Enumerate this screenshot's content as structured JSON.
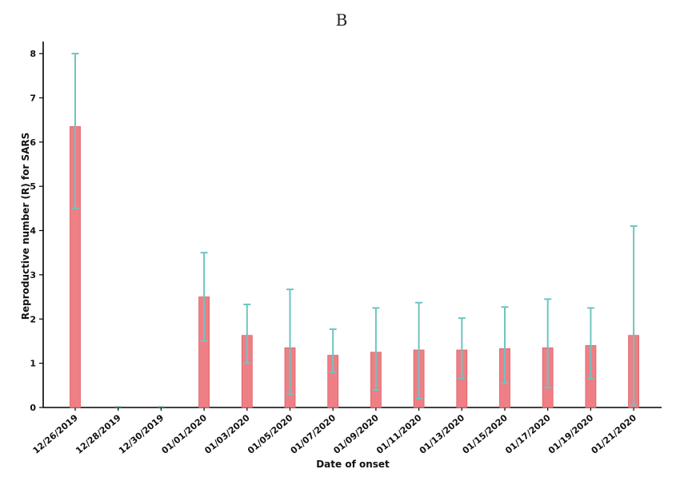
{
  "chart_data": {
    "type": "bar",
    "title": "B",
    "xlabel": "Date of onset",
    "ylabel": "Reproductive number (R) for SARS",
    "ylim": [
      0,
      8.2
    ],
    "yticks": [
      0,
      1,
      2,
      3,
      4,
      5,
      6,
      7,
      8
    ],
    "categories": [
      "12/26/2019",
      "12/28/2019",
      "12/30/2019",
      "01/01/2020",
      "01/03/2020",
      "01/05/2020",
      "01/07/2020",
      "01/09/2020",
      "01/11/2020",
      "01/13/2020",
      "01/15/2020",
      "01/17/2020",
      "01/19/2020",
      "01/21/2020"
    ],
    "values": [
      6.35,
      0,
      0,
      2.5,
      1.63,
      1.35,
      1.18,
      1.25,
      1.3,
      1.3,
      1.33,
      1.35,
      1.4,
      1.63
    ],
    "lower": [
      4.5,
      0,
      0,
      1.5,
      1.0,
      0.3,
      0.8,
      0.4,
      0.2,
      0.65,
      0.55,
      0.45,
      0.65,
      0.05
    ],
    "upper": [
      8.0,
      0,
      0,
      3.5,
      2.33,
      2.67,
      1.77,
      2.25,
      2.37,
      2.02,
      2.27,
      2.45,
      2.25,
      4.1
    ],
    "grid": false,
    "colors": {
      "bar": "#ee7f85",
      "bar_edge": "#e05d66",
      "error_bar": "#6fc4bf"
    }
  }
}
